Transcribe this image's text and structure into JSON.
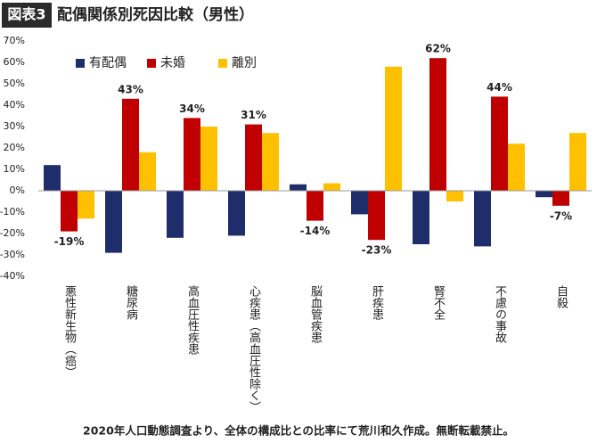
{
  "chart_data": {
    "type": "bar",
    "badge": "図表3",
    "title": "配偶関係別死因比較（男性）",
    "footnote": "2020年人口動態調査より、全体の構成比との比率にて荒川和久作成。無断転載禁止。",
    "categories": [
      "悪性新生物（癌）",
      "糖尿病",
      "高血圧性疾患",
      "心疾患（高血圧性除く）",
      "脳血管疾患",
      "肝疾患",
      "腎不全",
      "不慮の事故",
      "自殺"
    ],
    "series": [
      {
        "name": "有配偶",
        "color": "#1f2d6b",
        "values": [
          12,
          -29,
          -22,
          -21,
          3,
          -11,
          -25,
          -26,
          -3
        ]
      },
      {
        "name": "未婚",
        "color": "#c00000",
        "values": [
          -19,
          43,
          34,
          31,
          -14,
          -23,
          62,
          44,
          -7
        ],
        "value_labels": [
          "-19%",
          "43%",
          "34%",
          "31%",
          "-14%",
          "-23%",
          "62%",
          "44%",
          "-7%"
        ]
      },
      {
        "name": "離別",
        "color": "#ffc000",
        "values": [
          -13,
          18,
          30,
          27,
          3.5,
          58,
          -5,
          22,
          27
        ]
      }
    ],
    "ylim": [
      -40,
      70
    ],
    "yticks": [
      {
        "value": -40,
        "label": "-40%"
      },
      {
        "value": -30,
        "label": "-30%"
      },
      {
        "value": -20,
        "label": "-20%"
      },
      {
        "value": -10,
        "label": "-10%"
      },
      {
        "value": 0,
        "label": "0%"
      },
      {
        "value": 10,
        "label": "10%"
      },
      {
        "value": 20,
        "label": "20%"
      },
      {
        "value": 30,
        "label": "30%"
      },
      {
        "value": 40,
        "label": "40%"
      },
      {
        "value": 50,
        "label": "50%"
      },
      {
        "value": 60,
        "label": "60%"
      },
      {
        "value": 70,
        "label": "70%"
      }
    ],
    "grid": false,
    "legend": "top-left"
  }
}
